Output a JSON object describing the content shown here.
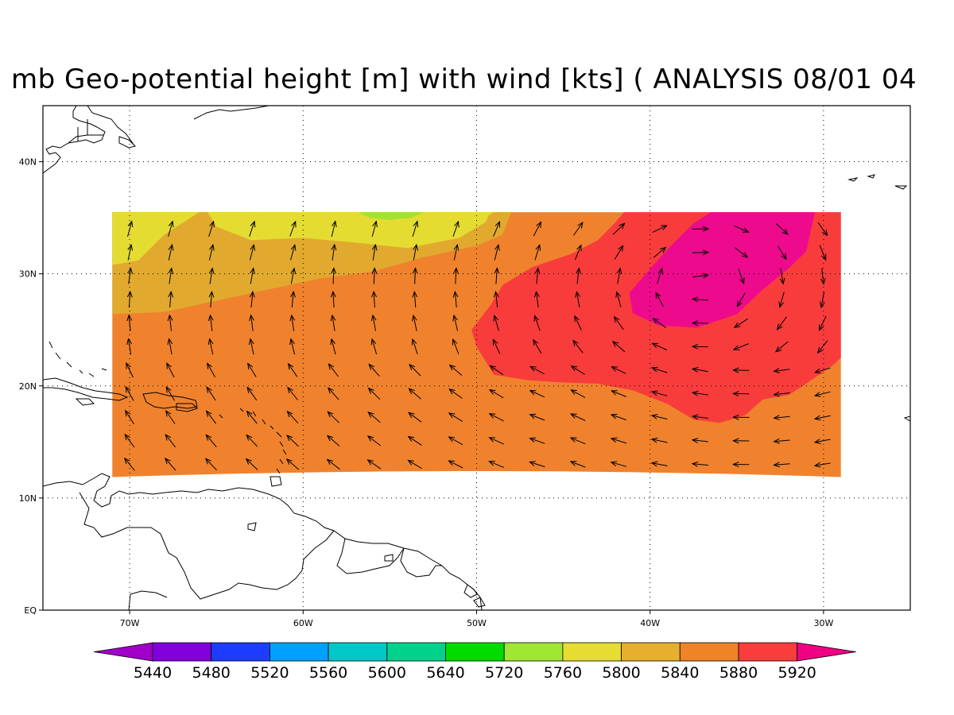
{
  "title": "mb Geo-potential height [m] with wind [kts] ( ANALYSIS 08/01 04",
  "map": {
    "lon_range": [
      -75,
      -25
    ],
    "lat_range": [
      0,
      45
    ],
    "x_ticks": [
      {
        "lon": -70,
        "label": "70W"
      },
      {
        "lon": -60,
        "label": "60W"
      },
      {
        "lon": -50,
        "label": "50W"
      },
      {
        "lon": -40,
        "label": "40W"
      },
      {
        "lon": -30,
        "label": "30W"
      }
    ],
    "y_ticks": [
      {
        "lat": 0,
        "label": "EQ"
      },
      {
        "lat": 10,
        "label": "10N"
      },
      {
        "lat": 20,
        "label": "20N"
      },
      {
        "lat": 30,
        "label": "30N"
      },
      {
        "lat": 40,
        "label": "40N"
      }
    ],
    "grid": "dotted at 10 degree intervals",
    "field_domain": {
      "lon_min": -71,
      "lon_max": -29,
      "lat_min": 11,
      "lat_max": 35.5
    },
    "fill_colors": {
      "5800_5840": "#e1aa2e",
      "5840_5880": "#f0822e",
      "5880_5920": "#f83c3c",
      "5920_up": "#ee0a8c",
      "5760_5800": "#e5dc32",
      "5720_5760": "#a3e232"
    }
  },
  "colorbar": {
    "colors": [
      "#a000c8",
      "#8200dc",
      "#1e3cff",
      "#00a0ff",
      "#00c8c8",
      "#00d28c",
      "#00dc00",
      "#a0e632",
      "#e6dc32",
      "#e6af2d",
      "#f08228",
      "#fa3c3c",
      "#f00082"
    ],
    "labels": [
      "5440",
      "5480",
      "5520",
      "5560",
      "5600",
      "5640",
      "5720",
      "5760",
      "5800",
      "5840",
      "5880",
      "5920"
    ]
  }
}
